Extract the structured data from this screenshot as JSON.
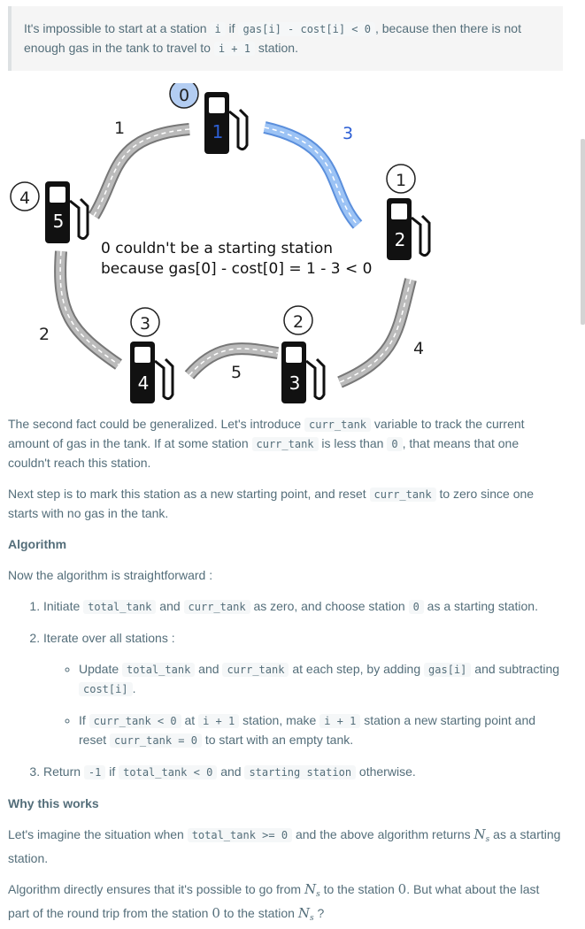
{
  "quote": {
    "t1": "It's impossible to start at a station ",
    "c1": "i",
    "t2": " if ",
    "c2": "gas[i] - cost[i] < 0",
    "t3": ", because then there is not enough gas in the tank to travel to ",
    "c3": "i + 1",
    "t4": " station."
  },
  "figure": {
    "caption_line1": "0 couldn't be a starting station",
    "caption_line2": "because gas[0] - cost[0] = 1 - 3 < 0",
    "stations": [
      {
        "number": "1",
        "gas": "0"
      },
      {
        "number": "2",
        "gas": "1"
      },
      {
        "number": "3",
        "gas": "2"
      },
      {
        "number": "4",
        "gas": "3"
      },
      {
        "number": "5",
        "gas": "4"
      }
    ],
    "costs": [
      "3",
      "4",
      "5",
      "2",
      "1"
    ]
  },
  "p1": {
    "t1": "The second fact could be generalized. Let's introduce ",
    "c1": "curr_tank",
    "t2": " variable to track the current amount of gas in the tank. If at some station ",
    "c2": "curr_tank",
    "t3": " is less than ",
    "c3": "0",
    "t4": ", that means that one couldn't reach this station."
  },
  "p2": {
    "t1": "Next step is to mark this station as a new starting point, and reset ",
    "c1": "curr_tank",
    "t2": " to zero since one starts with no gas in the tank."
  },
  "algorithm_heading": "Algorithm",
  "p3": "Now the algorithm is straightforward :",
  "steps": {
    "s1": {
      "t1": "Initiate ",
      "c1": "total_tank",
      "t2": " and ",
      "c2": "curr_tank",
      "t3": " as zero, and choose station ",
      "c3": "0",
      "t4": " as a starting station."
    },
    "s2": {
      "t1": "Iterate over all stations :"
    },
    "s2a": {
      "t1": "Update ",
      "c1": "total_tank",
      "t2": " and ",
      "c2": "curr_tank",
      "t3": " at each step, by adding ",
      "c3": "gas[i]",
      "t4": " and subtracting ",
      "c4": "cost[i]",
      "t5": "."
    },
    "s2b": {
      "t1": "If ",
      "c1": "curr_tank < 0",
      "t2": " at ",
      "c2": "i + 1",
      "t3": " station, make ",
      "c3": "i + 1",
      "t4": " station a new starting point and reset ",
      "c4": "curr_tank = 0",
      "t5": " to start with an empty tank."
    },
    "s3": {
      "t1": "Return ",
      "c1": "-1",
      "t2": " if ",
      "c2": "total_tank < 0",
      "t3": " and ",
      "c3": "starting station",
      "t4": " otherwise."
    }
  },
  "why_heading": "Why this works",
  "p4": {
    "t1": "Let's imagine the situation when ",
    "c1": "total_tank >= 0",
    "t2": " and the above algorithm returns ",
    "m1": "N",
    "m1s": "s",
    "t3": " as a starting station."
  },
  "p5": {
    "t1": "Algorithm directly ensures that it's possible to go from ",
    "m1": "N",
    "m1s": "s",
    "t2": " to the station ",
    "m2": "0",
    "t3": ". But what about the last part of the round trip from the station ",
    "m3": "0",
    "t4": " to the station ",
    "m4": "N",
    "m4s": "s",
    "t5": " ?"
  },
  "colors": {
    "text": "#546e7a",
    "code_bg": "#f5f7f8",
    "highlight": "#4c8ef7",
    "gas_bubble": "#b3cdf2"
  }
}
